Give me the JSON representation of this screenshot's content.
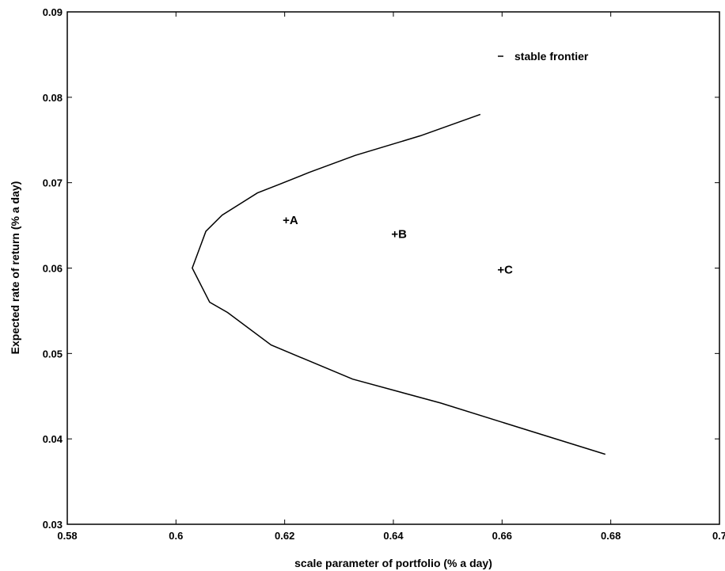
{
  "chart_data": {
    "type": "line",
    "xlabel": "scale parameter of portfolio (% a day)",
    "ylabel": "Expected rate of return (% a day)",
    "xlim": [
      0.58,
      0.7
    ],
    "ylim": [
      0.03,
      0.09
    ],
    "x_ticks": [
      "0.58",
      "0.6",
      "0.62",
      "0.64",
      "0.66",
      "0.68",
      "0.7"
    ],
    "y_ticks": [
      "0.03",
      "0.04",
      "0.05",
      "0.06",
      "0.07",
      "0.08",
      "0.09"
    ],
    "grid": false,
    "legend": {
      "placement": "top-right",
      "entry": "stable frontier"
    },
    "series": [
      {
        "name": "stable frontier",
        "x": [
          0.656,
          0.645,
          0.633,
          0.6245,
          0.619,
          0.615,
          0.6085,
          0.6055,
          0.603,
          0.6062,
          0.6095,
          0.6175,
          0.6325,
          0.6487,
          0.6648,
          0.679
        ],
        "y": [
          0.078,
          0.0755,
          0.0732,
          0.0712,
          0.0698,
          0.0688,
          0.0662,
          0.0643,
          0.06,
          0.056,
          0.0548,
          0.051,
          0.047,
          0.0442,
          0.041,
          0.0382
        ]
      }
    ],
    "points": [
      {
        "label": "+A",
        "x": 0.6205,
        "y": 0.0656
      },
      {
        "label": "+B",
        "x": 0.6405,
        "y": 0.064
      },
      {
        "label": "+C",
        "x": 0.66,
        "y": 0.0598
      }
    ]
  }
}
